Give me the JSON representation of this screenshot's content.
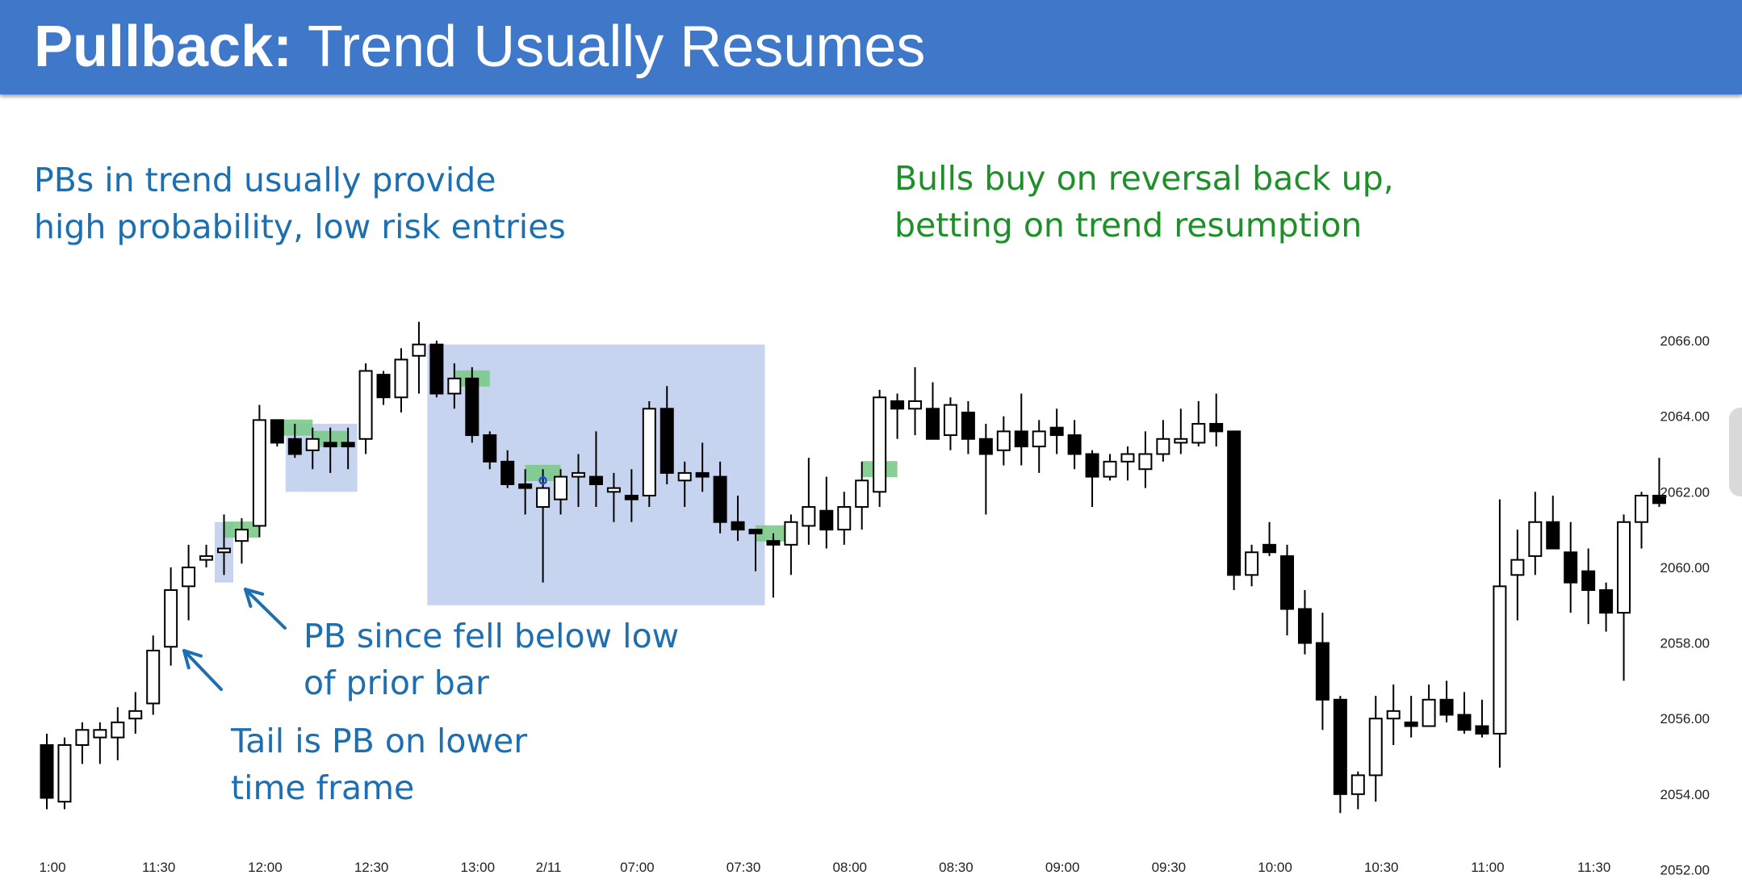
{
  "header": {
    "title_bold": "Pullback:",
    "title_rest": " Trend Usually Resumes",
    "background": "#3f77c9"
  },
  "annotations": {
    "pb_note_line1": "PBs in trend usually provide",
    "pb_note_line2": "high probability, low risk entries",
    "bulls_note_line1": "Bulls buy on reversal back up,",
    "bulls_note_line2": "betting on trend resumption",
    "fell_note_line1": "PB since fell below low",
    "fell_note_line2": "of prior bar",
    "tail_note_line1": "Tail is PB on lower",
    "tail_note_line2": "time frame"
  },
  "colors": {
    "annotation_blue": "#1d6fb0",
    "annotation_green": "#1f8f2a",
    "highlight_box": "#c7d4f0",
    "entry_marker": "#7cc98a",
    "bear_candle": "#000000",
    "bull_candle": "#ffffff"
  },
  "chart_data": {
    "type": "candlestick",
    "ylim": [
      2051.2,
      2066.8
    ],
    "yticks": [
      "2066.00",
      "2064.00",
      "2062.00",
      "2060.00",
      "2058.00",
      "2056.00",
      "2054.00",
      "2052.00"
    ],
    "xticks": [
      {
        "label": "1:00",
        "bar": 0
      },
      {
        "label": "11:30",
        "bar": 6
      },
      {
        "label": "12:00",
        "bar": 12
      },
      {
        "label": "12:30",
        "bar": 18
      },
      {
        "label": "13:00",
        "bar": 24
      },
      {
        "label": "2/11",
        "bar": 28
      },
      {
        "label": "07:00",
        "bar": 33
      },
      {
        "label": "07:30",
        "bar": 39
      },
      {
        "label": "08:00",
        "bar": 45
      },
      {
        "label": "08:30",
        "bar": 51
      },
      {
        "label": "09:00",
        "bar": 57
      },
      {
        "label": "09:30",
        "bar": 63
      },
      {
        "label": "10:00",
        "bar": 69
      },
      {
        "label": "10:30",
        "bar": 75
      },
      {
        "label": "11:00",
        "bar": 81
      },
      {
        "label": "11:30",
        "bar": 87
      }
    ],
    "candles": [
      [
        2055.3,
        2055.6,
        2053.6,
        2053.9
      ],
      [
        2053.8,
        2055.5,
        2053.6,
        2055.3
      ],
      [
        2055.3,
        2055.9,
        2054.8,
        2055.7
      ],
      [
        2055.5,
        2055.9,
        2054.8,
        2055.7
      ],
      [
        2055.5,
        2056.3,
        2054.9,
        2055.9
      ],
      [
        2056.0,
        2056.7,
        2055.6,
        2056.2
      ],
      [
        2056.4,
        2058.2,
        2056.1,
        2057.8
      ],
      [
        2057.9,
        2060.0,
        2057.4,
        2059.4
      ],
      [
        2059.5,
        2060.6,
        2058.6,
        2060.0
      ],
      [
        2060.2,
        2060.6,
        2060.0,
        2060.3
      ],
      [
        2060.4,
        2061.4,
        2059.8,
        2060.5
      ],
      [
        2060.7,
        2061.3,
        2060.1,
        2061.0
      ],
      [
        2061.1,
        2064.3,
        2060.8,
        2063.9
      ],
      [
        2063.9,
        2063.9,
        2063.2,
        2063.3
      ],
      [
        2063.4,
        2063.8,
        2062.9,
        2063.0
      ],
      [
        2063.1,
        2063.7,
        2062.6,
        2063.4
      ],
      [
        2063.3,
        2063.7,
        2062.5,
        2063.2
      ],
      [
        2063.3,
        2063.7,
        2062.6,
        2063.2
      ],
      [
        2063.4,
        2065.4,
        2063.0,
        2065.2
      ],
      [
        2065.1,
        2065.2,
        2064.3,
        2064.5
      ],
      [
        2064.5,
        2065.8,
        2064.1,
        2065.5
      ],
      [
        2065.6,
        2066.5,
        2064.6,
        2065.9
      ],
      [
        2065.9,
        2066.0,
        2064.5,
        2064.6
      ],
      [
        2064.6,
        2065.4,
        2064.2,
        2065.0
      ],
      [
        2065.0,
        2065.3,
        2063.3,
        2063.5
      ],
      [
        2063.5,
        2063.6,
        2062.6,
        2062.8
      ],
      [
        2062.8,
        2063.1,
        2062.1,
        2062.2
      ],
      [
        2062.2,
        2062.6,
        2061.4,
        2062.1
      ],
      [
        2061.6,
        2062.6,
        2059.6,
        2062.1
      ],
      [
        2061.8,
        2062.6,
        2061.4,
        2062.4
      ],
      [
        2062.4,
        2063.0,
        2061.6,
        2062.5
      ],
      [
        2062.4,
        2063.6,
        2061.6,
        2062.2
      ],
      [
        2062.0,
        2062.5,
        2061.2,
        2062.1
      ],
      [
        2061.9,
        2062.6,
        2061.2,
        2061.8
      ],
      [
        2061.9,
        2064.4,
        2061.6,
        2064.2
      ],
      [
        2064.2,
        2064.8,
        2062.2,
        2062.5
      ],
      [
        2062.3,
        2062.8,
        2061.6,
        2062.5
      ],
      [
        2062.5,
        2063.3,
        2062.0,
        2062.4
      ],
      [
        2062.4,
        2062.8,
        2060.9,
        2061.2
      ],
      [
        2061.2,
        2061.9,
        2060.7,
        2061.0
      ],
      [
        2061.0,
        2061.0,
        2059.9,
        2060.9
      ],
      [
        2060.7,
        2060.9,
        2059.2,
        2060.6
      ],
      [
        2060.6,
        2061.4,
        2059.8,
        2061.2
      ],
      [
        2061.1,
        2062.9,
        2060.6,
        2061.6
      ],
      [
        2061.5,
        2062.4,
        2060.5,
        2061.0
      ],
      [
        2061.0,
        2062.0,
        2060.6,
        2061.6
      ],
      [
        2061.6,
        2062.8,
        2061.0,
        2062.3
      ],
      [
        2062.0,
        2064.7,
        2061.6,
        2064.5
      ],
      [
        2064.4,
        2064.6,
        2063.4,
        2064.2
      ],
      [
        2064.2,
        2065.3,
        2063.5,
        2064.4
      ],
      [
        2064.2,
        2064.9,
        2063.4,
        2063.4
      ],
      [
        2063.5,
        2064.5,
        2063.1,
        2064.3
      ],
      [
        2064.1,
        2064.4,
        2063.0,
        2063.4
      ],
      [
        2063.4,
        2063.8,
        2061.4,
        2063.0
      ],
      [
        2063.1,
        2064.0,
        2062.7,
        2063.6
      ],
      [
        2063.6,
        2064.6,
        2062.7,
        2063.2
      ],
      [
        2063.2,
        2063.9,
        2062.5,
        2063.6
      ],
      [
        2063.7,
        2064.2,
        2063.0,
        2063.5
      ],
      [
        2063.5,
        2063.9,
        2062.6,
        2063.0
      ],
      [
        2063.0,
        2063.1,
        2061.6,
        2062.4
      ],
      [
        2062.4,
        2063.0,
        2062.3,
        2062.8
      ],
      [
        2062.8,
        2063.2,
        2062.3,
        2063.0
      ],
      [
        2062.6,
        2063.6,
        2062.1,
        2063.0
      ],
      [
        2063.0,
        2063.9,
        2062.8,
        2063.4
      ],
      [
        2063.3,
        2064.2,
        2063.0,
        2063.4
      ],
      [
        2063.3,
        2064.4,
        2063.2,
        2063.8
      ],
      [
        2063.8,
        2064.6,
        2063.2,
        2063.6
      ],
      [
        2063.6,
        2063.6,
        2059.4,
        2059.8
      ],
      [
        2059.8,
        2060.6,
        2059.5,
        2060.4
      ],
      [
        2060.6,
        2061.2,
        2060.3,
        2060.4
      ],
      [
        2060.3,
        2060.6,
        2058.2,
        2058.9
      ],
      [
        2058.9,
        2059.4,
        2057.7,
        2058.0
      ],
      [
        2058.0,
        2058.8,
        2055.7,
        2056.5
      ],
      [
        2056.5,
        2056.6,
        2053.5,
        2054.0
      ],
      [
        2054.0,
        2054.6,
        2053.6,
        2054.5
      ],
      [
        2054.5,
        2056.6,
        2053.8,
        2056.0
      ],
      [
        2056.0,
        2056.9,
        2055.3,
        2056.2
      ],
      [
        2055.9,
        2056.6,
        2055.5,
        2055.8
      ],
      [
        2055.8,
        2056.9,
        2055.8,
        2056.5
      ],
      [
        2056.5,
        2057.0,
        2055.9,
        2056.1
      ],
      [
        2056.1,
        2056.7,
        2055.6,
        2055.7
      ],
      [
        2055.8,
        2056.5,
        2055.5,
        2055.6
      ],
      [
        2055.6,
        2061.8,
        2054.7,
        2059.5
      ],
      [
        2059.8,
        2061.0,
        2058.6,
        2060.2
      ],
      [
        2060.3,
        2062.0,
        2059.8,
        2061.2
      ],
      [
        2061.2,
        2061.9,
        2060.6,
        2060.5
      ],
      [
        2060.4,
        2061.2,
        2058.8,
        2059.6
      ],
      [
        2059.9,
        2060.5,
        2058.5,
        2059.4
      ],
      [
        2059.4,
        2059.6,
        2058.3,
        2058.8
      ],
      [
        2058.8,
        2061.4,
        2057.0,
        2061.2
      ],
      [
        2061.2,
        2062.0,
        2060.5,
        2061.9
      ],
      [
        2061.9,
        2062.9,
        2061.6,
        2061.7
      ]
    ],
    "highlight_boxes": [
      {
        "from_bar": 10,
        "to_bar": 10,
        "top": 2061.2,
        "bottom": 2059.6
      },
      {
        "from_bar": 14,
        "to_bar": 17,
        "top": 2063.8,
        "bottom": 2062.0
      },
      {
        "from_bar": 22,
        "to_bar": 40,
        "top": 2065.9,
        "bottom": 2059.0
      }
    ],
    "entry_markers": [
      {
        "bar": 11,
        "price": 2061.0
      },
      {
        "bar": 14,
        "price": 2063.7
      },
      {
        "bar": 16,
        "price": 2063.4
      },
      {
        "bar": 24,
        "price": 2065.0
      },
      {
        "bar": 28,
        "price": 2062.5
      },
      {
        "bar": 41,
        "price": 2060.9
      },
      {
        "bar": 47,
        "price": 2062.6
      }
    ]
  }
}
